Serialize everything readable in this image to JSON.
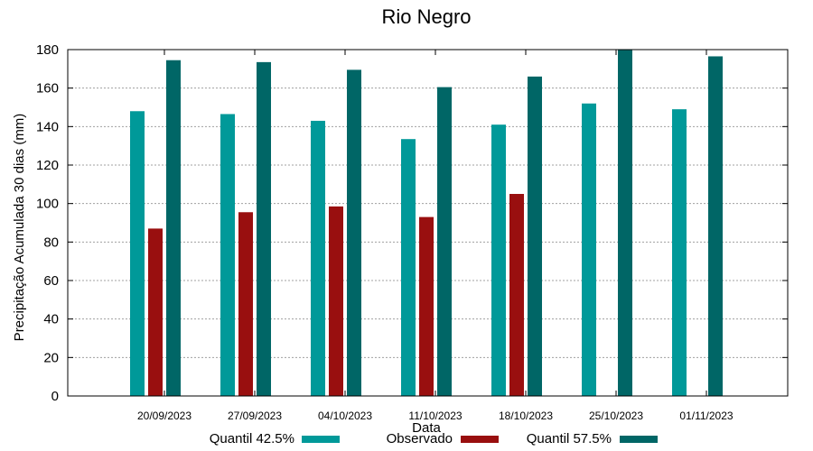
{
  "chart_data": {
    "type": "bar",
    "title": "Rio Negro",
    "xlabel": "Data",
    "ylabel": "Precipitação Acumulada 30 dias (mm)",
    "ylim": [
      0,
      180
    ],
    "yticks": [
      0,
      20,
      40,
      60,
      80,
      100,
      120,
      140,
      160,
      180
    ],
    "grid": true,
    "legend_position": "bottom",
    "categories": [
      "20/09/2023",
      "27/09/2023",
      "04/10/2023",
      "11/10/2023",
      "18/10/2023",
      "25/10/2023",
      "01/11/2023"
    ],
    "series": [
      {
        "name": "Quantil 42.5%",
        "color": "#009999",
        "values": [
          148,
          146.5,
          143,
          133.5,
          141,
          152,
          149
        ]
      },
      {
        "name": "Observado",
        "color": "#990f0f",
        "values": [
          87,
          95.5,
          98.5,
          93,
          105,
          null,
          null
        ]
      },
      {
        "name": "Quantil 57.5%",
        "color": "#006666",
        "values": [
          174.5,
          173.5,
          169.5,
          160.5,
          166,
          180,
          176.5
        ]
      }
    ]
  }
}
